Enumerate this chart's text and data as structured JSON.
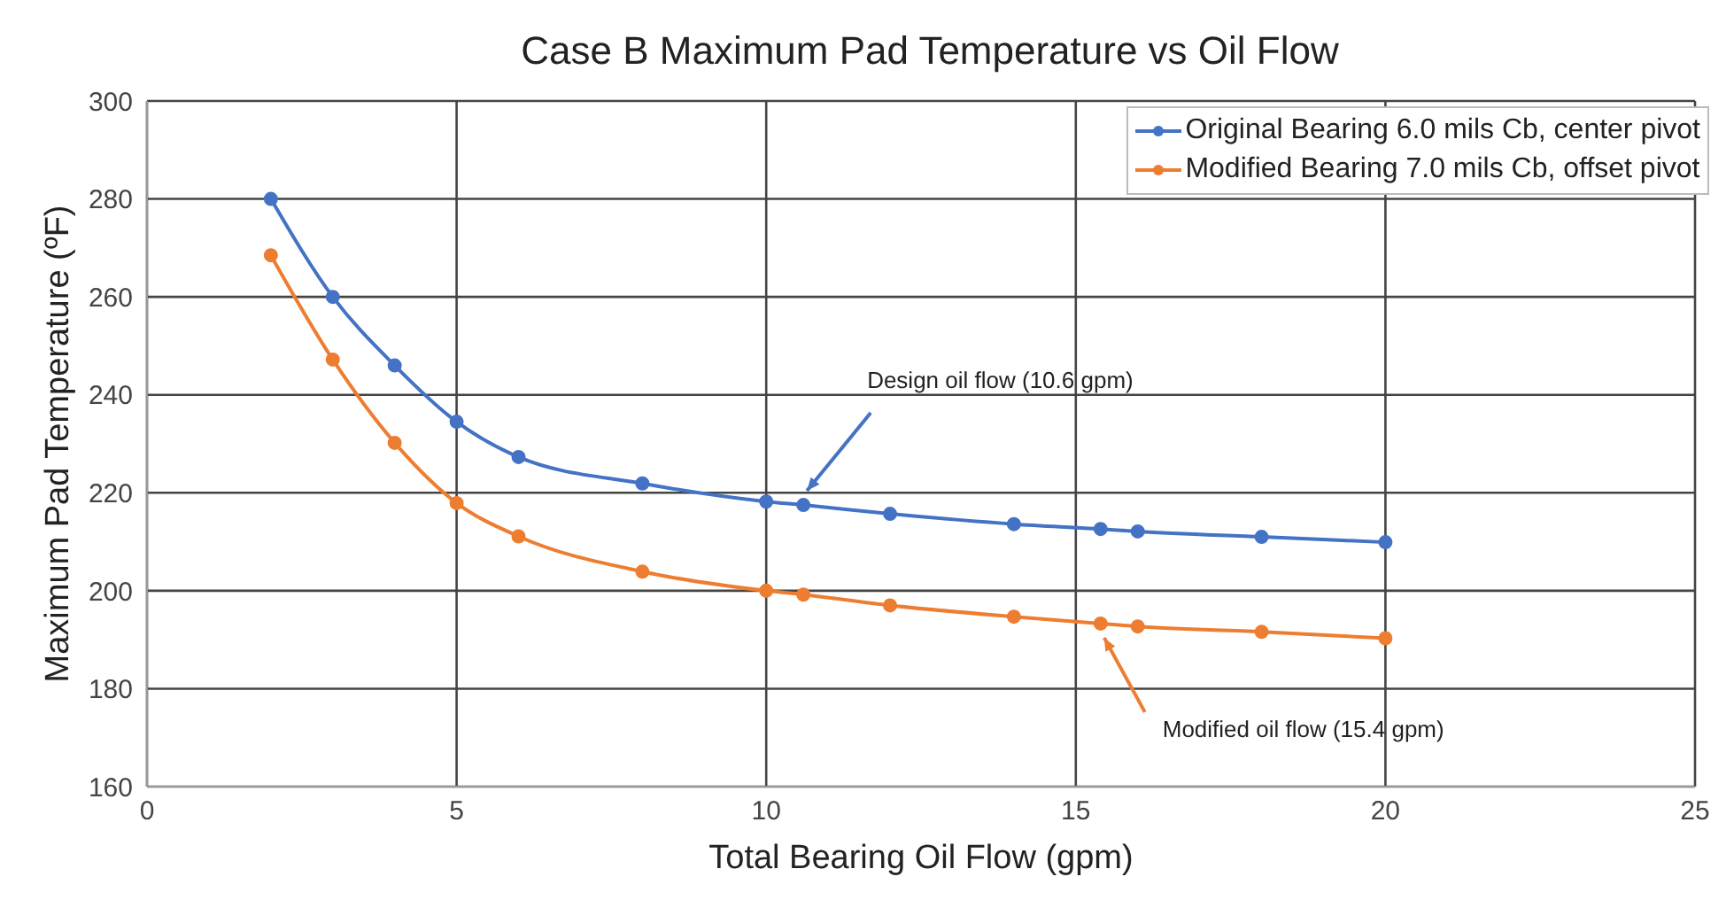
{
  "chart_data": {
    "type": "line",
    "title": "Case B Maximum Pad Temperature vs Oil Flow",
    "xlabel": "Total Bearing Oil Flow (gpm)",
    "ylabel": "Maximum Pad Temperature (ºF)",
    "xlim": [
      0,
      25
    ],
    "xticks": [
      0,
      5,
      10,
      15,
      20,
      25
    ],
    "ylim": [
      160,
      300
    ],
    "yticks": [
      160,
      180,
      200,
      220,
      240,
      260,
      280,
      300
    ],
    "grid": true,
    "legend": "top right",
    "marker": "circle",
    "line_style": "solid",
    "x": [
      2,
      3,
      4,
      5,
      6,
      8,
      10,
      10.6,
      12,
      14,
      15.4,
      16,
      18,
      20
    ],
    "series": [
      {
        "name": "Original Bearing 6.0 mils Cb, center pivot",
        "color": "#4472c4",
        "values": [
          280,
          260,
          246,
          234.5,
          227.3,
          221.9,
          218.2,
          217.5,
          215.7,
          213.6,
          212.6,
          212.1,
          211,
          209.9
        ]
      },
      {
        "name": "Modified Bearing 7.0 mils Cb, offset pivot",
        "color": "#ed7d31",
        "values": [
          268.5,
          247.2,
          230.2,
          217.9,
          211.1,
          203.9,
          200,
          199.2,
          197,
          194.7,
          193.3,
          192.7,
          191.6,
          190.3
        ]
      }
    ],
    "annotations": [
      {
        "text": "Design oil flow (10.6 gpm)",
        "x": 10.6,
        "y": 217.5
      },
      {
        "text": "Modified oil flow (15.4 gpm)",
        "x": 15.4,
        "y": 193.3
      }
    ]
  }
}
